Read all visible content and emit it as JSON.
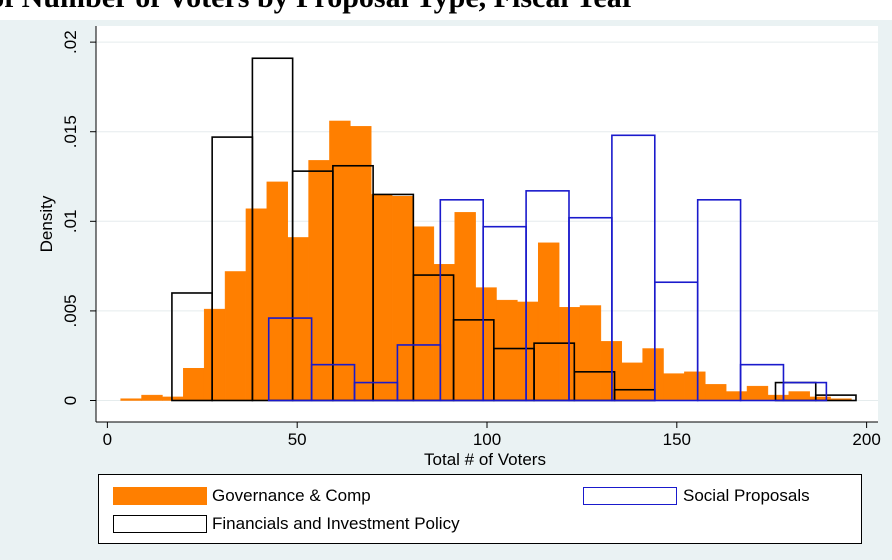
{
  "title": "Distribution of Number of Voters by Proposal Type, Fiscal Year",
  "chart_data": {
    "type": "histogram",
    "xlabel": "Total # of Voters",
    "ylabel": "Density",
    "xlim": [
      -3,
      203
    ],
    "ylim": [
      -0.0012,
      0.0209
    ],
    "xticks": [
      0,
      50,
      100,
      150,
      200
    ],
    "yticks": [
      0,
      0.005,
      0.01,
      0.015,
      0.02
    ],
    "ytick_labels": [
      "0",
      ".005",
      ".01",
      ".015",
      ".02"
    ],
    "grid": true,
    "legend_position": "bottom",
    "series": [
      {
        "name": "Governance & Comp",
        "color": "#ff7f00",
        "style": "filled",
        "bin_width": 5.5,
        "bin_starts": [
          3.5,
          9,
          14.5,
          20,
          25.5,
          31,
          36.5,
          42,
          47.5,
          53,
          58.5,
          64,
          69.5,
          75,
          80.5,
          86,
          91.5,
          97,
          102.5,
          108,
          113.5,
          119,
          124.5,
          130,
          135.5,
          141,
          146.5,
          152,
          157.5,
          163,
          168.5,
          174,
          179.5,
          185,
          190.5
        ],
        "values": [
          0.0001,
          0.0003,
          0.0002,
          0.0018,
          0.0051,
          0.0072,
          0.0107,
          0.0122,
          0.0091,
          0.0134,
          0.0156,
          0.0153,
          0.0115,
          0.0114,
          0.0097,
          0.0076,
          0.0105,
          0.0063,
          0.0056,
          0.0055,
          0.0088,
          0.0052,
          0.0053,
          0.0033,
          0.0021,
          0.0029,
          0.0015,
          0.0016,
          0.0009,
          0.0005,
          0.0008,
          0.0003,
          0.0005,
          0.0002,
          0.0001
        ]
      },
      {
        "name": "Financials and Investment Policy",
        "color": "#000000",
        "style": "outline",
        "bin_width": 10.6,
        "bin_starts": [
          17,
          27.6,
          38.2,
          48.8,
          59.4,
          70,
          80.6,
          91.2,
          101.8,
          112.4,
          123,
          133.6,
          144.2,
          154.8,
          165.4,
          176,
          186.6
        ],
        "values": [
          0.006,
          0.0147,
          0.0191,
          0.0128,
          0.0131,
          0.0115,
          0.007,
          0.0045,
          0.0029,
          0.0032,
          0.0016,
          0.0006,
          0,
          0,
          0,
          0.001,
          0.0003
        ]
      },
      {
        "name": "Social Proposals",
        "color": "#1a1acc",
        "style": "outline",
        "bin_width": 11.3,
        "bin_starts": [
          42.5,
          53.8,
          65.1,
          76.4,
          87.7,
          99,
          110.3,
          121.6,
          132.9,
          144.2,
          155.5,
          166.8,
          178.1
        ],
        "values": [
          0.0046,
          0.002,
          0.001,
          0.0031,
          0.0112,
          0.0097,
          0.0117,
          0.0102,
          0.0148,
          0.0066,
          0.0112,
          0.002,
          0.001
        ]
      }
    ]
  },
  "legend": {
    "items": [
      {
        "label": "Governance & Comp"
      },
      {
        "label": "Social Proposals"
      },
      {
        "label": "Financials and Investment Policy"
      }
    ]
  }
}
